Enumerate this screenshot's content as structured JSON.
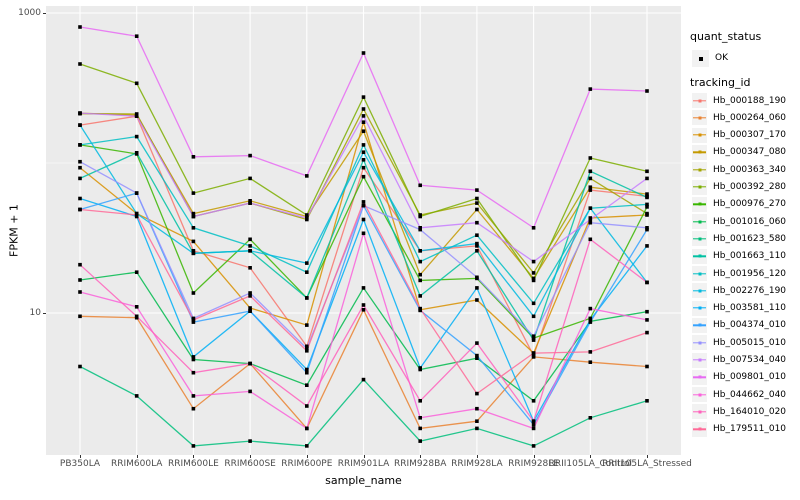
{
  "figure": {
    "xlabel": "sample_name",
    "ylabel": "FPKM + 1",
    "y_ticks": [
      {
        "label": "1000",
        "value": 1000
      },
      {
        "label": "10",
        "value": 10
      }
    ]
  },
  "legend": {
    "quant_status_title": "quant_status",
    "quant_status_items": [
      {
        "label": "OK",
        "marker": "black-point"
      }
    ],
    "tracking_title": "tracking_id"
  },
  "style_colors": {
    "panel_background": "#EBEBEB",
    "gridline": "#FFFFFF",
    "legend_key_background": "#F2F2F2",
    "point_color": "#000000",
    "axis_text": "#4D4D4D"
  },
  "chart_data": {
    "type": "line",
    "x_axis": "sample_name",
    "y_axis": "FPKM + 1",
    "y_scale": "log10",
    "y_tick_values": [
      10,
      1000
    ],
    "y_minor_gridline": 100,
    "grid": true,
    "legend_position": "right",
    "marker": "black-square-point",
    "categories": [
      "PB350LA",
      "RRIM600LA",
      "RRIM600LE",
      "RRIM600SE",
      "RRIM600PE",
      "RRIM901LA",
      "RRIM928BA",
      "RRIM928LA",
      "RRIM928LE",
      "RRII105LA_Control",
      "RRII105LA_Stressed"
    ],
    "series": [
      {
        "name": "Hb_000188_190",
        "color": "#F8766D",
        "values": [
          179,
          205,
          26,
          20,
          6.0,
          93,
          26,
          28,
          5.2,
          66,
          60
        ]
      },
      {
        "name": "Hb_000264_060",
        "color": "#EA8331",
        "values": [
          9.5,
          9.3,
          2.3,
          4.6,
          1.7,
          10.5,
          1.7,
          1.9,
          5.1,
          4.7,
          4.4
        ]
      },
      {
        "name": "Hb_000307_170",
        "color": "#D89000",
        "values": [
          93,
          46,
          30,
          10.8,
          8.3,
          187,
          10.5,
          12.2,
          5.4,
          43,
          45
        ]
      },
      {
        "name": "Hb_000347_080",
        "color": "#C49A00",
        "values": [
          215,
          208,
          46,
          56,
          44,
          163,
          18,
          49,
          17,
          69,
          62
        ]
      },
      {
        "name": "Hb_000363_340",
        "color": "#A3A500",
        "values": [
          213,
          212,
          44,
          54,
          42,
          229,
          45,
          54,
          18.5,
          79,
          46
        ]
      },
      {
        "name": "Hb_000392_280",
        "color": "#7CAE00",
        "values": [
          457,
          340,
          63,
          79,
          45,
          275,
          44,
          58,
          16.5,
          108,
          88
        ]
      },
      {
        "name": "Hb_000976_270",
        "color": "#39B600",
        "values": [
          132,
          115,
          13.6,
          31,
          12.6,
          81,
          16.5,
          17,
          6.8,
          9.2,
          51
        ]
      },
      {
        "name": "Hb_001016_060",
        "color": "#00BB4E",
        "values": [
          16.6,
          18.7,
          4.9,
          4.6,
          3.3,
          14.7,
          4.2,
          5.0,
          2.6,
          8.8,
          10.2
        ]
      },
      {
        "name": "Hb_001623_580",
        "color": "#00BF7D",
        "values": [
          4.4,
          2.8,
          1.3,
          1.4,
          1.3,
          3.6,
          1.4,
          1.7,
          1.3,
          2.0,
          2.6
        ]
      },
      {
        "name": "Hb_001663_110",
        "color": "#00C1A3",
        "values": [
          79,
          117,
          25,
          26,
          12.6,
          105,
          13,
          26,
          6.6,
          88,
          59
        ]
      },
      {
        "name": "Hb_001956_120",
        "color": "#00BFC4",
        "values": [
          132,
          150,
          37,
          28,
          18.7,
          132,
          22,
          33,
          11.6,
          50,
          53
        ]
      },
      {
        "name": "Hb_002276_190",
        "color": "#00BAE0",
        "values": [
          179,
          46,
          25,
          26,
          21.5,
          118,
          26,
          29,
          9.5,
          50,
          16
        ]
      },
      {
        "name": "Hb_003581_110",
        "color": "#00B0F6",
        "values": [
          58,
          44,
          5.1,
          10.3,
          4.2,
          42,
          4.3,
          14.7,
          1.9,
          9.0,
          28
        ]
      },
      {
        "name": "Hb_004374_010",
        "color": "#35A2FF",
        "values": [
          49,
          63,
          8.7,
          10.3,
          4.0,
          52,
          10.4,
          5.2,
          1.8,
          8.7,
          36
        ]
      },
      {
        "name": "Hb_005015_010",
        "color": "#9590FF",
        "values": [
          102,
          63,
          9.2,
          13.6,
          5.8,
          52,
          36,
          17.3,
          7.0,
          40,
          37
        ]
      },
      {
        "name": "Hb_007534_040",
        "color": "#C77CFF",
        "values": [
          215,
          205,
          44,
          54,
          43,
          206,
          37,
          40,
          22,
          42,
          79
        ]
      },
      {
        "name": "Hb_009801_010",
        "color": "#E76BF3",
        "values": [
          807,
          700,
          110,
          112,
          82,
          541,
          71,
          66,
          37,
          311,
          302
        ]
      },
      {
        "name": "Hb_044662_040",
        "color": "#FA62DB",
        "values": [
          13.8,
          11,
          2.8,
          3.0,
          1.7,
          34,
          2.0,
          2.3,
          1.7,
          10.7,
          9.0
        ]
      },
      {
        "name": "Hb_164010_020",
        "color": "#FF62BC",
        "values": [
          21,
          9.5,
          4.0,
          4.6,
          2.4,
          11.3,
          2.6,
          6.3,
          1.9,
          31,
          16
        ]
      },
      {
        "name": "Hb_179511_010",
        "color": "#FF6A98",
        "values": [
          49,
          45,
          9.0,
          13.0,
          5.6,
          55,
          10.7,
          2.9,
          5.4,
          5.5,
          7.4
        ]
      }
    ]
  }
}
